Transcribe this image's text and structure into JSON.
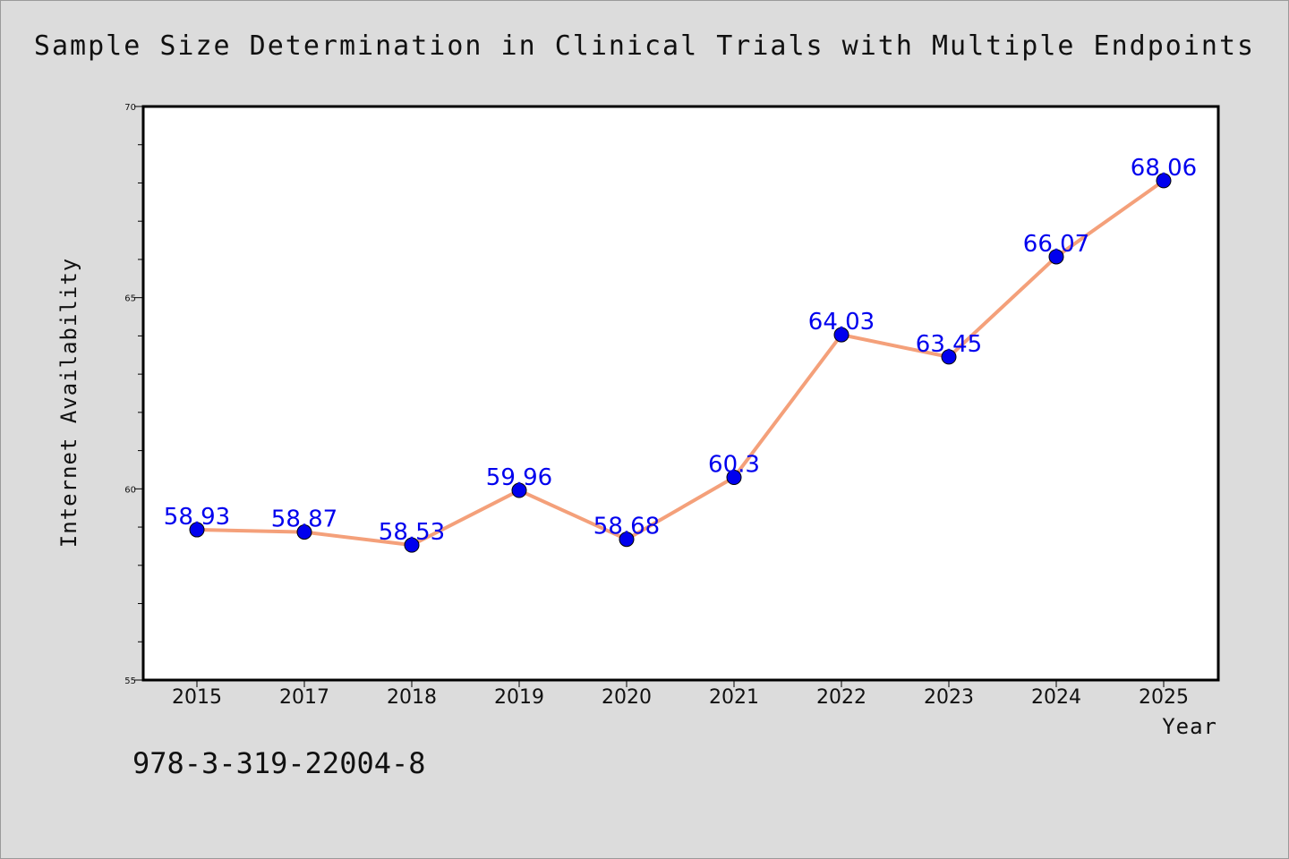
{
  "chart_data": {
    "type": "line",
    "title": "Sample Size Determination in Clinical Trials with Multiple Endpoints",
    "xlabel": "Year",
    "ylabel": "Internet Availability",
    "categories": [
      "2015",
      "2017",
      "2018",
      "2019",
      "2020",
      "2021",
      "2022",
      "2023",
      "2024",
      "2025"
    ],
    "series": [
      {
        "values": [
          58.93,
          58.87,
          58.53,
          59.96,
          58.68,
          60.3,
          64.03,
          63.45,
          66.07,
          68.06
        ],
        "data_labels": [
          "58.93",
          "58.87",
          "58.53",
          "59.96",
          "58.68",
          "60.3",
          "64.03",
          "63.45",
          "66.07",
          "68.06"
        ]
      }
    ],
    "ylim": [
      55,
      70
    ],
    "y_major_ticks": [
      55,
      60,
      65,
      70
    ],
    "y_minor_step": 1,
    "grid": false,
    "legend": "none",
    "colors": {
      "line": "#f4a07a",
      "marker": "#0000ee",
      "data_label": "#0000ee",
      "background": "#dcdcdc",
      "plot_background": "#ffffff"
    }
  },
  "footnote": "978-3-319-22004-8"
}
